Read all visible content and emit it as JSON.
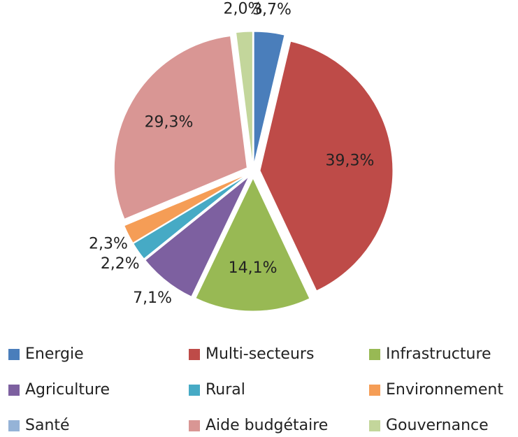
{
  "chart_data": {
    "type": "pie",
    "categories": [
      "Energie",
      "Multi-secteurs",
      "Infrastructure",
      "Agriculture",
      "Rural",
      "Environnement",
      "Santé",
      "Aide budgétaire",
      "Gouvernance"
    ],
    "values": [
      3.7,
      39.3,
      14.1,
      7.1,
      2.2,
      2.3,
      0,
      29.3,
      2.0
    ],
    "value_labels": [
      "3,7%",
      "39,3%",
      "14,1%",
      "7,1%",
      "2,2%",
      "2,3%",
      null,
      "29,3%",
      "2,0%"
    ],
    "colors": [
      "#4a7ebb",
      "#be4b48",
      "#98b954",
      "#7d60a0",
      "#46aac5",
      "#f59d56",
      "#95b3d7",
      "#d99694",
      "#c3d69b"
    ],
    "legend": "bottom"
  }
}
